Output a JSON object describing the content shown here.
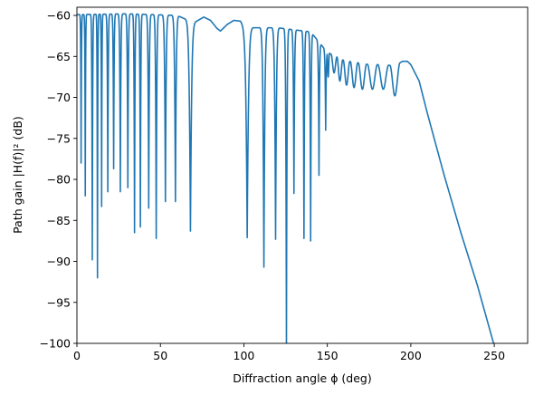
{
  "chart_data": {
    "type": "line",
    "title": "",
    "xlabel": "Diffraction angle ϕ (deg)",
    "ylabel": "Path gain |H(f)|² (dB)",
    "xlim": [
      0,
      270
    ],
    "ylim": [
      -100,
      -59
    ],
    "grid": false,
    "line_color": "#1f77b4",
    "x_ticks": [
      0,
      50,
      100,
      150,
      200,
      250
    ],
    "x_tick_labels": [
      "0",
      "50",
      "100",
      "150",
      "200",
      "250"
    ],
    "y_ticks": [
      -100,
      -95,
      -90,
      -85,
      -80,
      -75,
      -70,
      -65,
      -60
    ],
    "y_tick_labels": [
      "−100",
      "−95",
      "−90",
      "−85",
      "−80",
      "−75",
      "−70",
      "−65",
      "−60"
    ],
    "series": [
      {
        "envelope": {
          "x": [
            0,
            30,
            60,
            70,
            76,
            80,
            84,
            86,
            90,
            94,
            98,
            100,
            120,
            140,
            150,
            160,
            175,
            185,
            190,
            195,
            198,
            200,
            205,
            210,
            220,
            230,
            240,
            250
          ],
          "y": [
            -59.9,
            -59.8,
            -60.0,
            -60.9,
            -60.2,
            -60.6,
            -61.6,
            -61.9,
            -61.1,
            -60.6,
            -60.7,
            -61.5,
            -61.5,
            -62.0,
            -64.5,
            -65.5,
            -66.0,
            -66.0,
            -66.2,
            -65.6,
            -65.6,
            -66.0,
            -68.0,
            -72.0,
            -79.5,
            -86.5,
            -93.0,
            -100.3
          ]
        },
        "notches": {
          "x": [
            2.5,
            5.0,
            9.2,
            12.3,
            14.8,
            18.5,
            22.0,
            26.0,
            30.5,
            34.5,
            38.0,
            43.0,
            47.5,
            53.0,
            59.0,
            68.0,
            102.0,
            112.0,
            119.0,
            125.5,
            130.0,
            136.0,
            140.0,
            145.0,
            149.0
          ],
          "y": [
            -78.0,
            -82.0,
            -89.8,
            -92.0,
            -83.3,
            -81.5,
            -78.7,
            -81.5,
            -81.0,
            -86.5,
            -85.8,
            -83.5,
            -87.2,
            -82.7,
            -82.7,
            -86.3,
            -87.1,
            -90.7,
            -87.3,
            -100.5,
            -81.7,
            -87.2,
            -87.5,
            -79.5,
            -74.0
          ]
        },
        "ripples": [
          {
            "x": 150.5,
            "depth": -67.5
          },
          {
            "x": 154.0,
            "depth": -67.0
          },
          {
            "x": 157.5,
            "depth": -68.0
          },
          {
            "x": 161.5,
            "depth": -68.5
          },
          {
            "x": 166.0,
            "depth": -68.8
          },
          {
            "x": 171.0,
            "depth": -69.0
          },
          {
            "x": 177.0,
            "depth": -69.0
          },
          {
            "x": 183.5,
            "depth": -69.0
          },
          {
            "x": 190.5,
            "depth": -69.8
          }
        ]
      }
    ]
  }
}
